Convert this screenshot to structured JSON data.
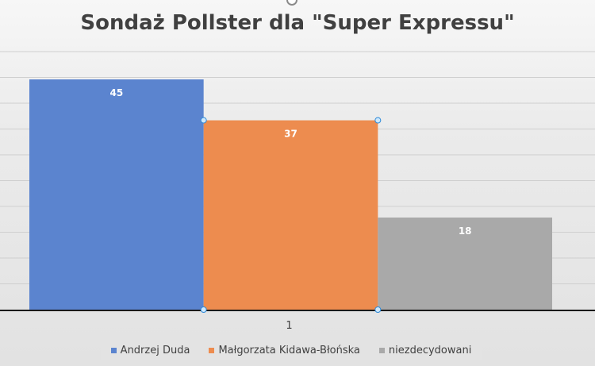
{
  "chart_data": {
    "type": "bar",
    "title": "Sondaż Pollster dla \"Super Expressu\"",
    "categories": [
      "1"
    ],
    "series": [
      {
        "name": "Andrzej Duda",
        "values": [
          45
        ],
        "color": "#5b84cf"
      },
      {
        "name": "Małgorzata Kidawa-Błońska",
        "values": [
          37
        ],
        "color": "#ed8c4f"
      },
      {
        "name": "niezdecydowani",
        "values": [
          18
        ],
        "color": "#a9a9a9"
      }
    ],
    "ylim": [
      0,
      45
    ],
    "grid": true,
    "legend": "bottom",
    "data_labels": true,
    "xlabel": "",
    "ylabel": ""
  }
}
